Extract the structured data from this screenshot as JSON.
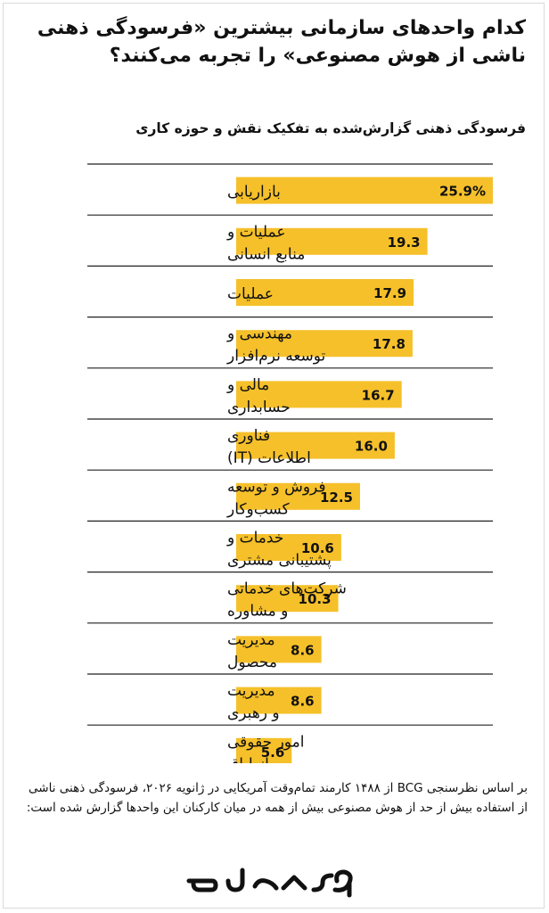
{
  "title": "کدام واحدهای سازمانی بیشترین «فرسودگی ذهنی ناشی از هوش مصنوعی» را تجربه می‌کنند؟",
  "subtitle": "فرسودگی ذهنی گزارش‌شده به تفکیک نقش و حوزه کاری",
  "footer": "بر اساس نظرسنجی BCG از ۱۴۸۸ کارمند تمام‌وقت آمریکایی در ژانویه ۲۰۲۶، فرسودگی ذهنی ناشی از استفاده بیش از حد از هوش مصنوعی بیش از همه در میان کارکنان این واحدها گزارش شده است:",
  "logo_text": "تمرشید",
  "colors": {
    "bar": "#f5c02a",
    "text": "#111111",
    "divider": "#222222"
  },
  "chart_data": {
    "type": "bar",
    "orientation": "horizontal",
    "title": "فرسودگی ذهنی گزارش‌شده به تفکیک نقش و حوزه کاری",
    "xlabel": "",
    "ylabel": "",
    "xlim": [
      0,
      25.9
    ],
    "grid": false,
    "categories": [
      [
        "بازاریابی"
      ],
      [
        "عملیات و",
        "منابع انسانی"
      ],
      [
        "عملیات"
      ],
      [
        "مهندسی و",
        "توسعه نرم‌افزار"
      ],
      [
        "مالی و",
        "حسابداری"
      ],
      [
        "فناوری",
        "اطلاعات (IT)"
      ],
      [
        "فروش و توسعه",
        "کسب‌وکار"
      ],
      [
        "خدمات و",
        "پشتیبانی مشتری"
      ],
      [
        "شرکت‌های خدماتی",
        "و مشاوره"
      ],
      [
        "مدیریت",
        "محصول"
      ],
      [
        "مدیریت",
        "و رهبری"
      ],
      [
        "امور حقوقی",
        "و انطباق"
      ]
    ],
    "values": [
      25.9,
      19.3,
      17.9,
      17.8,
      16.7,
      16.0,
      12.5,
      10.6,
      10.3,
      8.6,
      8.6,
      5.6
    ],
    "value_labels": [
      "25.9%",
      "19.3",
      "17.9",
      "17.8",
      "16.7",
      "16.0",
      "12.5",
      "10.6",
      "10.3",
      "8.6",
      "8.6",
      "5.6"
    ]
  }
}
